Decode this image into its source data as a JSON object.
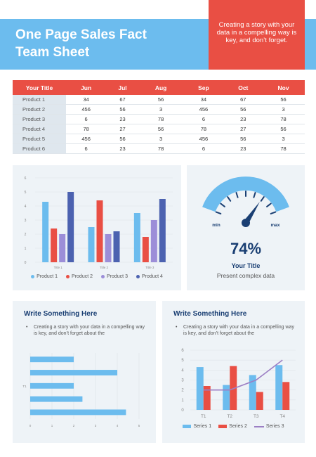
{
  "header": {
    "title_line1": "One Page Sales Fact",
    "title_line2": "Team Sheet",
    "tagline": "Creating a story with your data in a compelling way is key, and don’t forget."
  },
  "colors": {
    "banner_blue": "#6cbcee",
    "accent_red": "#e94f44",
    "dark_blue": "#1a3f73",
    "product_1": "#6cbcee",
    "product_2": "#e94f44",
    "product_3": "#9c8ed8",
    "product_4": "#4c62b0",
    "series_3": "#9c7fc4"
  },
  "table": {
    "headers": [
      "Your Title",
      "Jun",
      "Jul",
      "Aug",
      "Sep",
      "Oct",
      "Nov"
    ],
    "rows": [
      [
        "Product 1",
        "34",
        "67",
        "56",
        "34",
        "67",
        "56"
      ],
      [
        "Product 2",
        "456",
        "56",
        "3",
        "456",
        "56",
        "3"
      ],
      [
        "Product 3",
        "6",
        "23",
        "78",
        "6",
        "23",
        "78"
      ],
      [
        "Product 4",
        "78",
        "27",
        "56",
        "78",
        "27",
        "56"
      ],
      [
        "Product 5",
        "456",
        "56",
        "3",
        "456",
        "56",
        "3"
      ],
      [
        "Product 6",
        "6",
        "23",
        "78",
        "6",
        "23",
        "78"
      ]
    ]
  },
  "gauge": {
    "percent_label": "74%",
    "value": 0.74,
    "min_label": "min",
    "max_label": "max",
    "title": "Your Title",
    "subtitle": "Present complex data"
  },
  "panel_left": {
    "heading": "Write Something Here",
    "bullet": "Creating a story with your data in a compelling way is key, and don’t forget about the"
  },
  "panel_right": {
    "heading": "Write Something Here",
    "bullet": "Creating a story with your data in a compelling way is key, and don’t forget about the"
  },
  "chart_data": [
    {
      "type": "bar",
      "categories": [
        "Title 1",
        "Title 2",
        "Title 3"
      ],
      "series": [
        {
          "name": "Product 1",
          "values": [
            4.3,
            2.5,
            3.5
          ]
        },
        {
          "name": "Product 2",
          "values": [
            2.4,
            4.4,
            1.8
          ]
        },
        {
          "name": "Product 3",
          "values": [
            2.0,
            2.0,
            3.0
          ]
        },
        {
          "name": "Product 4",
          "values": [
            5.0,
            2.2,
            4.5
          ]
        }
      ],
      "ylim": [
        0,
        6
      ],
      "yticks": [
        "0",
        "1",
        "2",
        "3",
        "4",
        "5",
        "6"
      ],
      "grid": true,
      "legend": "bottom"
    },
    {
      "type": "bar",
      "orientation": "horizontal",
      "values": [
        4.4,
        2.4,
        2.0,
        4.0,
        2.0
      ],
      "category_label": "T1",
      "xlim": [
        0,
        5
      ],
      "xticks": [
        "0",
        "1",
        "2",
        "3",
        "4",
        "5"
      ],
      "grid": true
    },
    {
      "type": "bar",
      "categories": [
        "T1",
        "T2",
        "T3",
        "T4"
      ],
      "series": [
        {
          "name": "Series 1",
          "kind": "bar",
          "values": [
            4.3,
            2.5,
            3.5,
            4.5
          ]
        },
        {
          "name": "Series 2",
          "kind": "bar",
          "values": [
            2.4,
            4.4,
            1.8,
            2.8
          ]
        },
        {
          "name": "Series 3",
          "kind": "line",
          "values": [
            2.0,
            2.0,
            3.0,
            5.0
          ]
        }
      ],
      "ylim": [
        0,
        6
      ],
      "yticks": [
        "0",
        "1",
        "2",
        "3",
        "4",
        "5",
        "6"
      ],
      "grid": true,
      "legend": "bottom"
    }
  ]
}
